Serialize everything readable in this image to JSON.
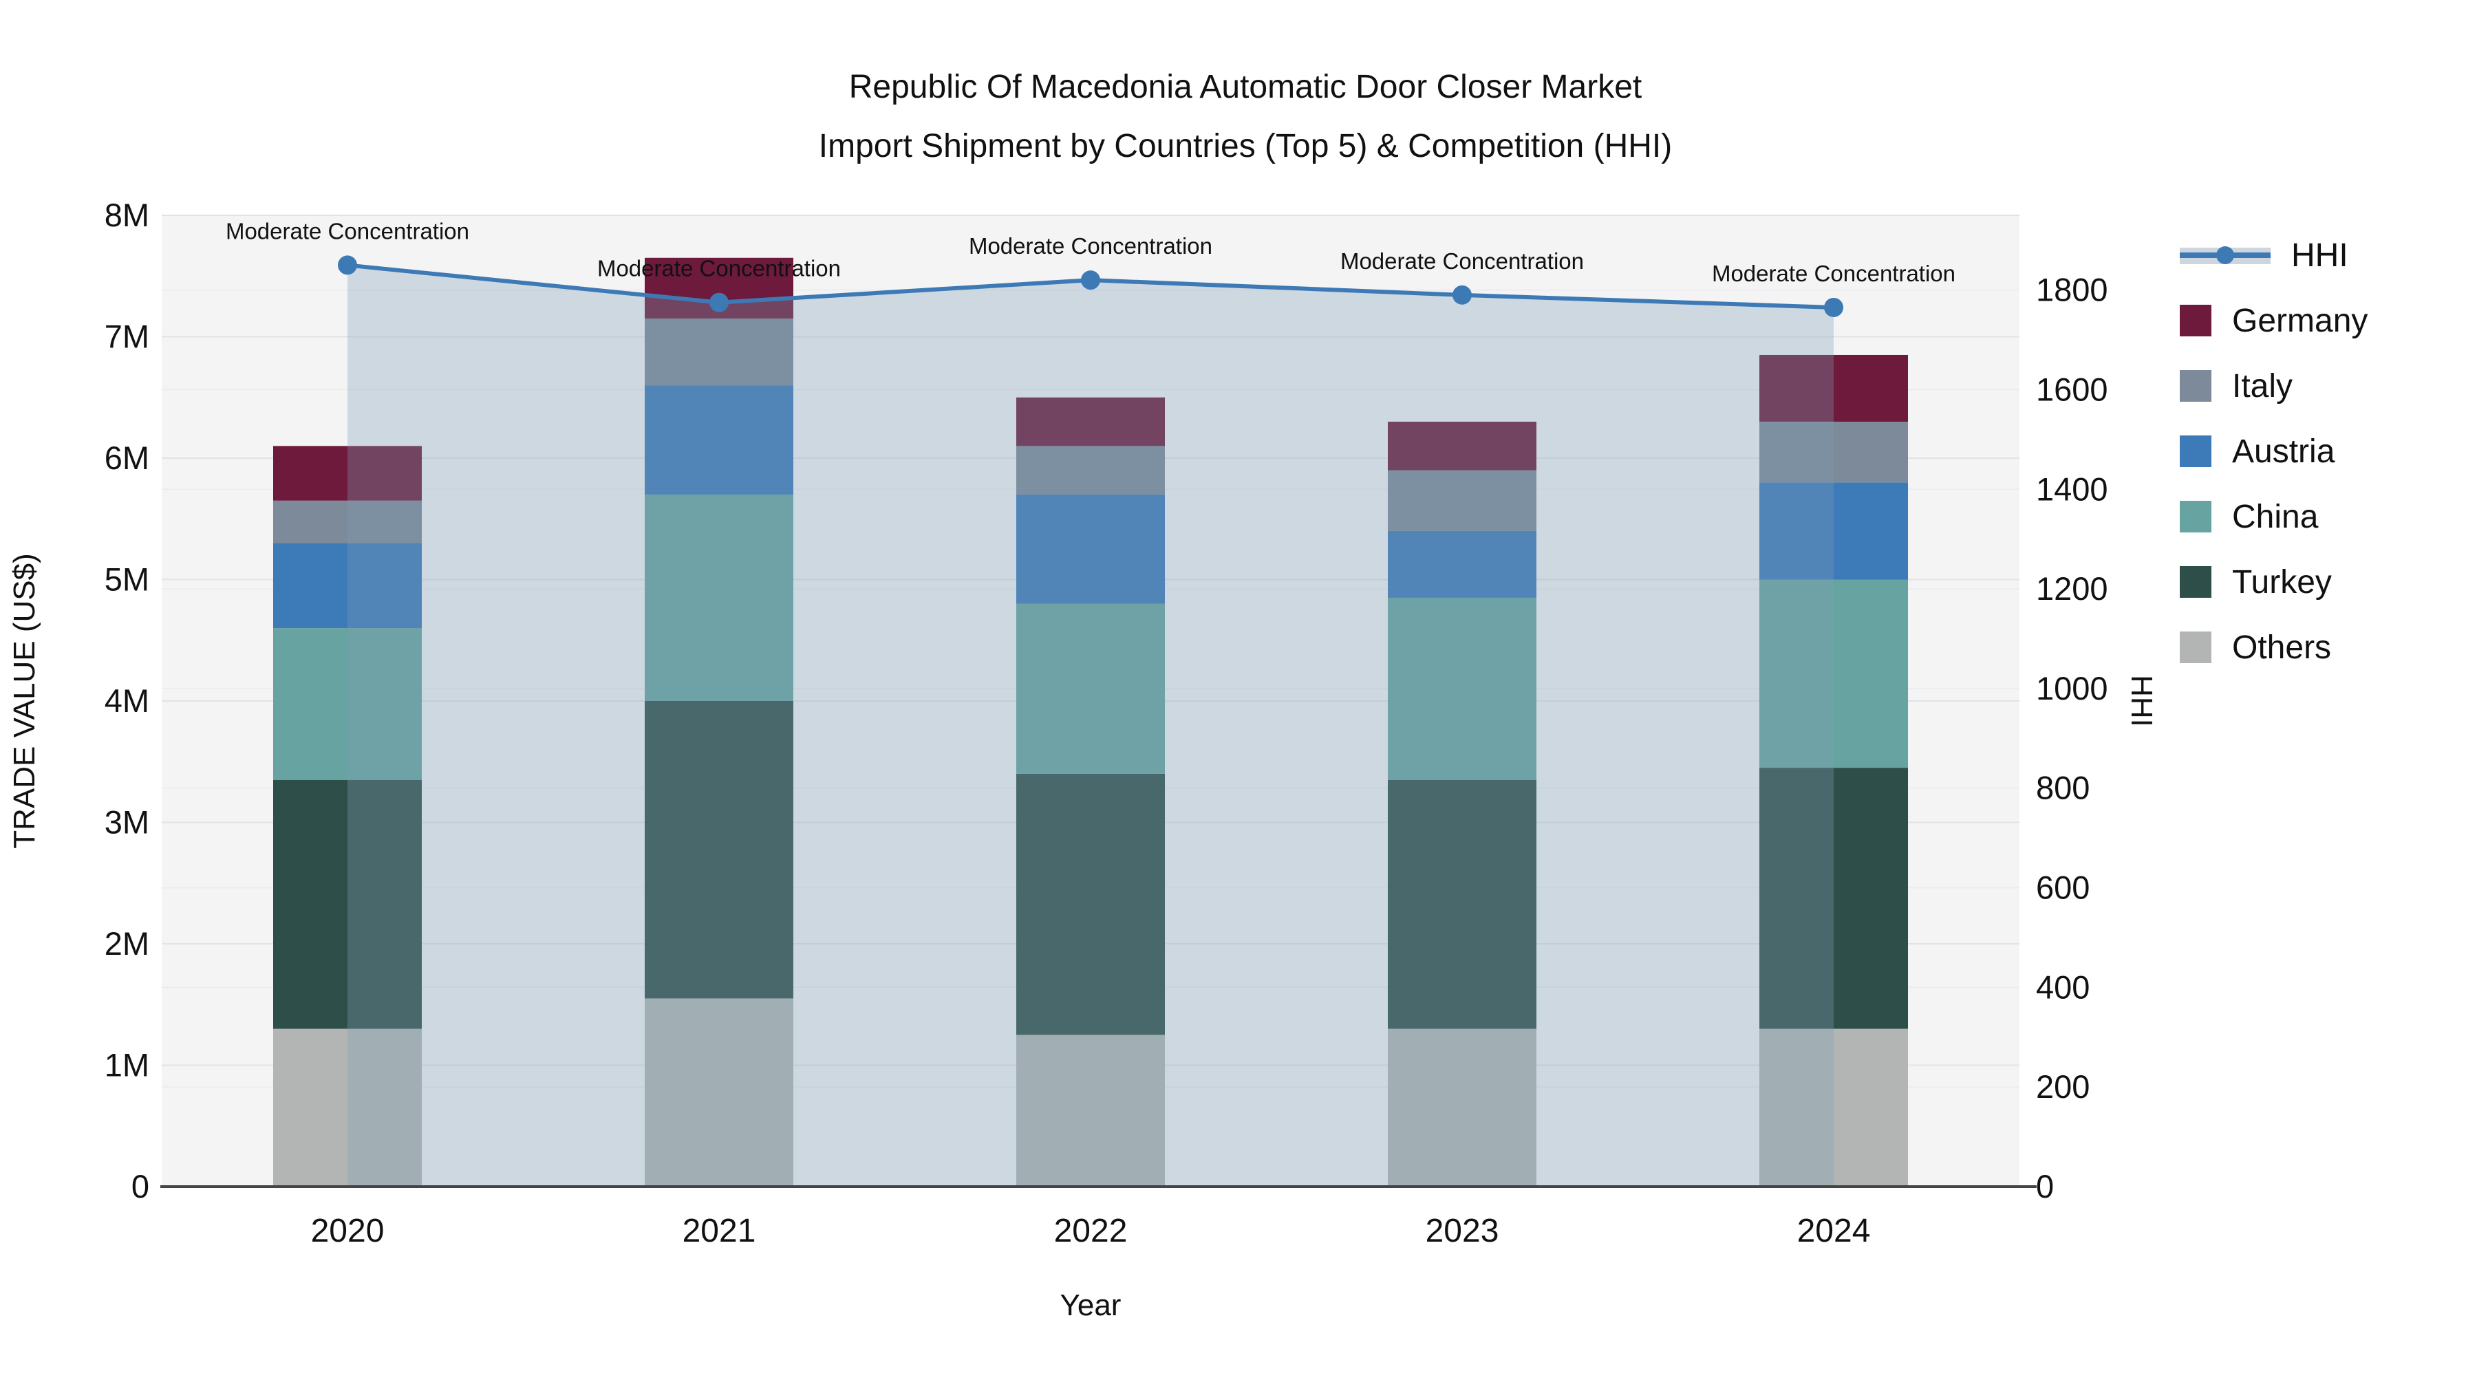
{
  "title": {
    "line1": "Republic Of Macedonia Automatic Door Closer Market",
    "line2": "Import Shipment by Countries (Top 5) & Competition (HHI)"
  },
  "colors": {
    "page_bg": "#ffffff",
    "plot_bg": "#f4f4f5",
    "grid_major": "#e2e3e6",
    "grid_minor": "#eaebee",
    "axis_line": "#444444",
    "text": "#111111",
    "hhi_line": "#3d7ab5",
    "hhi_fill": "rgba(128,158,180,0.32)",
    "legend_fill_band": "#cdd5de"
  },
  "chart_data": {
    "type": "bar",
    "stacked": true,
    "title": "Republic Of Macedonia Automatic Door Closer Market Import Shipment by Countries (Top 5) & Competition (HHI)",
    "categories": [
      "2020",
      "2021",
      "2022",
      "2023",
      "2024"
    ],
    "unit": "million US$",
    "series": [
      {
        "name": "Others",
        "color": "#b2b5b4",
        "values": [
          1.3,
          1.55,
          1.25,
          1.3,
          1.3
        ]
      },
      {
        "name": "Turkey",
        "color": "#2e4f49",
        "values": [
          2.05,
          2.45,
          2.15,
          2.05,
          2.15
        ]
      },
      {
        "name": "China",
        "color": "#67a4a1",
        "values": [
          1.25,
          1.7,
          1.4,
          1.5,
          1.55
        ]
      },
      {
        "name": "Austria",
        "color": "#3d7ab8",
        "values": [
          0.7,
          0.9,
          0.9,
          0.55,
          0.8
        ]
      },
      {
        "name": "Italy",
        "color": "#7d8a99",
        "values": [
          0.35,
          0.55,
          0.4,
          0.5,
          0.5
        ]
      },
      {
        "name": "Germany",
        "color": "#6e1a3c",
        "values": [
          0.45,
          0.5,
          0.4,
          0.4,
          0.55
        ]
      }
    ],
    "bar_totals_millions": [
      6.1,
      7.65,
      6.5,
      6.3,
      6.85
    ],
    "line_series": {
      "name": "HHI",
      "axis": "right",
      "values": [
        1850,
        1775,
        1820,
        1790,
        1765
      ]
    },
    "annotations": [
      {
        "x": "2020",
        "text": "Moderate Concentration"
      },
      {
        "x": "2021",
        "text": "Moderate Concentration"
      },
      {
        "x": "2022",
        "text": "Moderate Concentration"
      },
      {
        "x": "2023",
        "text": "Moderate Concentration"
      },
      {
        "x": "2024",
        "text": "Moderate Concentration"
      },
      {
        "x": "2024",
        "text": "Moderate Concentration"
      }
    ],
    "xlabel": "Year",
    "y_left": {
      "label": "TRADE VALUE (US$)",
      "max_millions": 8,
      "ticks": [
        "0",
        "1M",
        "2M",
        "3M",
        "4M",
        "5M",
        "6M",
        "7M",
        "8M"
      ]
    },
    "y_right": {
      "label": "HHI",
      "max": 1950,
      "tick_step": 200,
      "ticks": [
        "0",
        "200",
        "400",
        "600",
        "800",
        "1000",
        "1200",
        "1400",
        "1600",
        "1800"
      ]
    },
    "legend_position": "right",
    "grid": true
  }
}
